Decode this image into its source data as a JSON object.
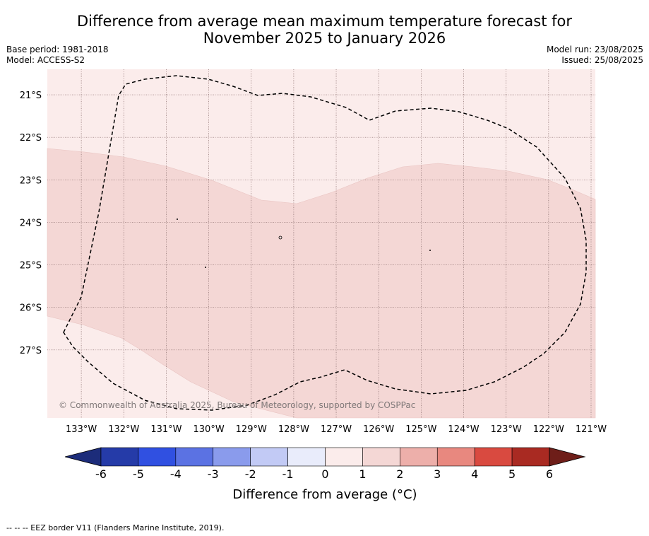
{
  "header": {
    "title_line1": "Difference from average mean maximum temperature forecast for",
    "title_line2": "November 2025 to January 2026",
    "base_period": "Base period: 1981-2018",
    "model": "Model: ACCESS-S2",
    "model_run": "Model run: 23/08/2025",
    "issued": "Issued: 25/08/2025"
  },
  "map": {
    "lon_labels": [
      "133°W",
      "132°W",
      "131°W",
      "130°W",
      "129°W",
      "128°W",
      "127°W",
      "126°W",
      "125°W",
      "124°W",
      "123°W",
      "122°W",
      "121°W"
    ],
    "lat_labels": [
      "21°S",
      "22°S",
      "23°S",
      "24°S",
      "25°S",
      "26°S",
      "27°S"
    ],
    "lon_range": [
      -133.8,
      -120.9
    ],
    "lat_range": [
      -28.6,
      -20.4
    ],
    "copyright": "© Commonwealth of Australia 2025, Bureau of Meteorology, supported by COSPPac",
    "colors": {
      "anomaly_0_1": "#fbeceb",
      "anomaly_1_2": "#f4d7d5",
      "grid": "#8a6e6e",
      "eez_border": "#000000"
    },
    "eez_border_name": "EEZ border V11"
  },
  "colorbar": {
    "title": "Difference from average (°C)",
    "tick_labels": [
      "-6",
      "-5",
      "-4",
      "-3",
      "-2",
      "-1",
      "0",
      "1",
      "2",
      "3",
      "4",
      "5",
      "6"
    ],
    "bins": [
      {
        "from": -6,
        "to": -5,
        "color": "#253ba8"
      },
      {
        "from": -5,
        "to": -4,
        "color": "#3050e1"
      },
      {
        "from": -4,
        "to": -3,
        "color": "#5b72e3"
      },
      {
        "from": -3,
        "to": -2,
        "color": "#8a9bec"
      },
      {
        "from": -2,
        "to": -1,
        "color": "#c2caf5"
      },
      {
        "from": -1,
        "to": 0,
        "color": "#e9ecfb"
      },
      {
        "from": 0,
        "to": 1,
        "color": "#fbeceb"
      },
      {
        "from": 1,
        "to": 2,
        "color": "#f4d7d5"
      },
      {
        "from": 2,
        "to": 3,
        "color": "#edafaa"
      },
      {
        "from": 3,
        "to": 4,
        "color": "#e8887f"
      },
      {
        "from": 4,
        "to": 5,
        "color": "#d94a40"
      },
      {
        "from": 5,
        "to": 6,
        "color": "#a92a22"
      }
    ],
    "under_color": "#1c2c7a",
    "over_color": "#6e1e19"
  },
  "footer": {
    "legend_line": "--  --  -- EEZ border V11 (Flanders Marine Institute, 2019)."
  }
}
